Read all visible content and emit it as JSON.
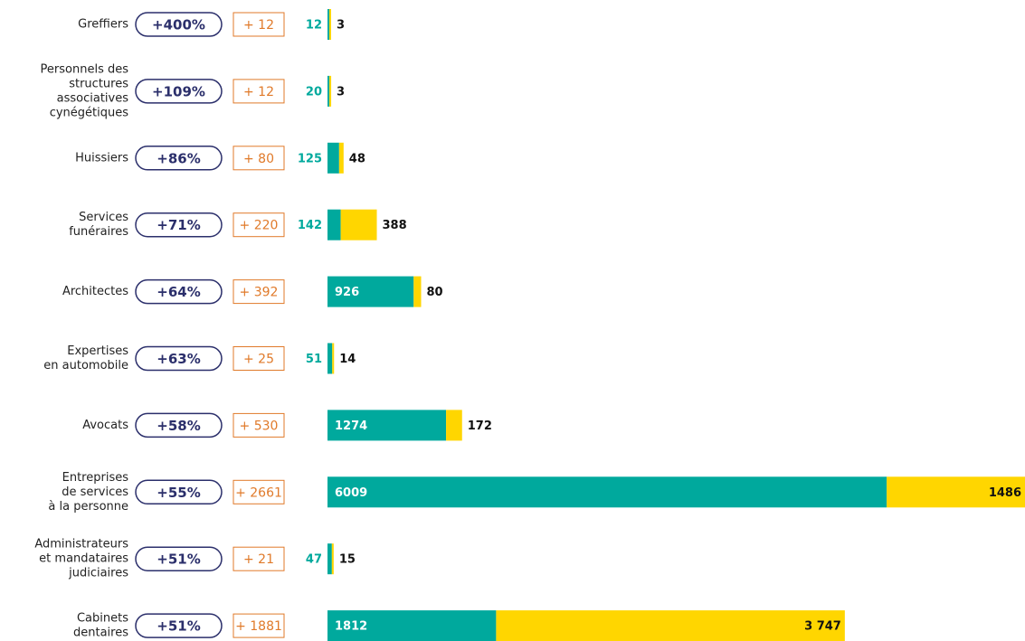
{
  "chart_data": {
    "type": "stacked-bar",
    "categories": [
      [
        "Greffiers"
      ],
      [
        "Personnels des",
        "structures",
        "associatives",
        "cynégétiques"
      ],
      [
        "Huissiers"
      ],
      [
        "Services",
        "funéraires"
      ],
      [
        "Architectes"
      ],
      [
        "Expertises",
        "en automobile"
      ],
      [
        "Avocats"
      ],
      [
        "Entreprises",
        "de services",
        "à la personne"
      ],
      [
        "Administrateurs",
        "et mandataires",
        "judiciaires"
      ],
      [
        "Cabinets",
        "dentaires"
      ]
    ],
    "change_pct": [
      "+400%",
      "+109%",
      "+86%",
      "+71%",
      "+64%",
      "+63%",
      "+58%",
      "+55%",
      "+51%",
      "+51%"
    ],
    "change_abs": [
      "+ 12",
      "+ 12",
      "+ 80",
      "+ 220",
      "+ 392",
      "+ 25",
      "+ 530",
      "+ 2661",
      "+ 21",
      "+ 1881"
    ],
    "series": [
      {
        "color": "#00a99d",
        "values": [
          12,
          20,
          125,
          142,
          926,
          51,
          1274,
          6009,
          47,
          1812
        ]
      },
      {
        "color": "#ffd600",
        "values": [
          3,
          3,
          48,
          388,
          80,
          14,
          172,
          1486,
          15,
          3747
        ],
        "value_labels": [
          "3",
          "3",
          "48",
          "388",
          "80",
          "14",
          "172",
          "1486",
          "15",
          "3 747"
        ]
      }
    ]
  }
}
